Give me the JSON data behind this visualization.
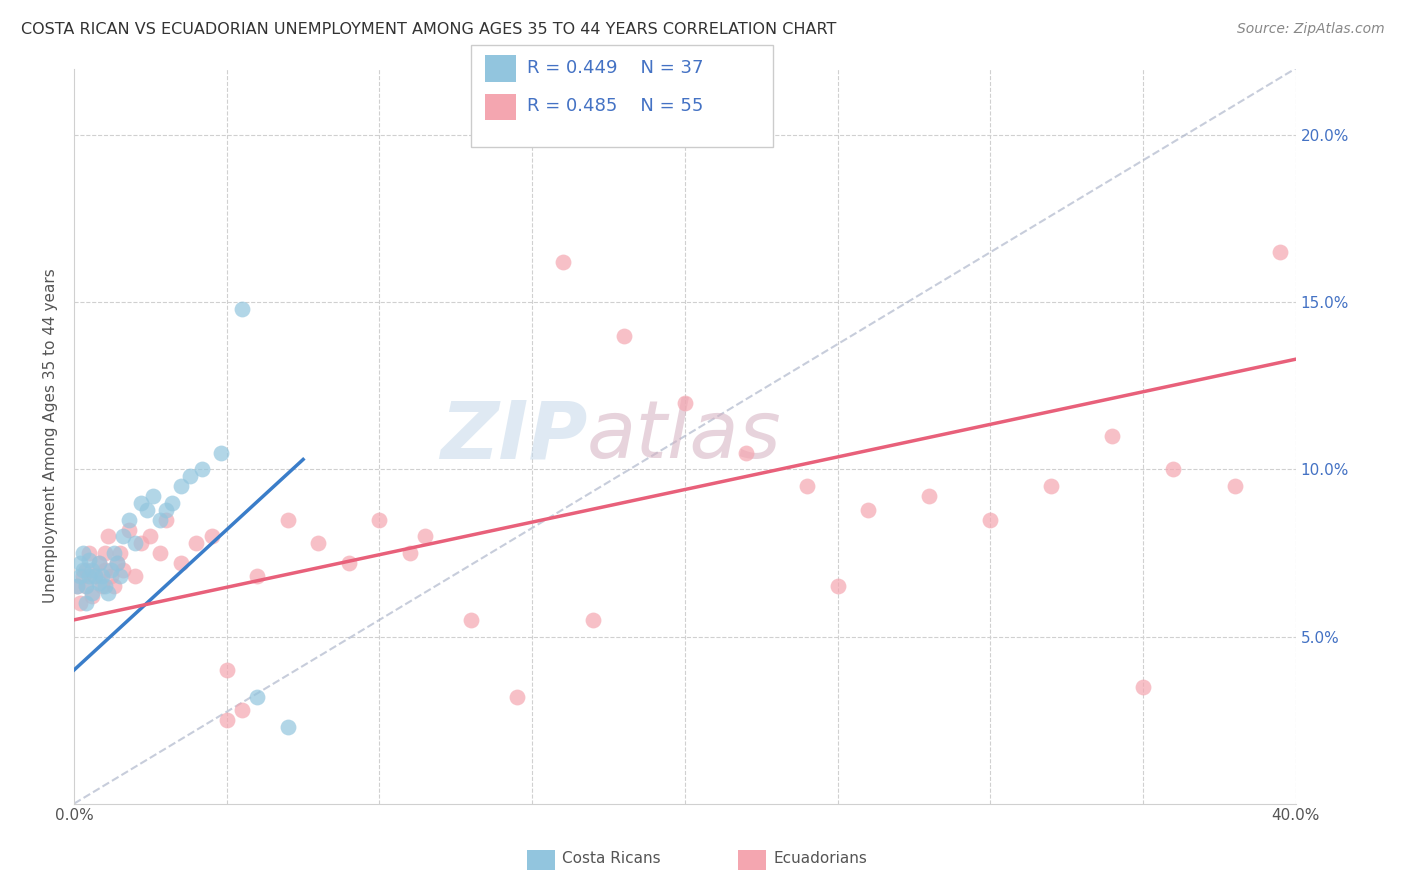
{
  "title": "COSTA RICAN VS ECUADORIAN UNEMPLOYMENT AMONG AGES 35 TO 44 YEARS CORRELATION CHART",
  "source": "Source: ZipAtlas.com",
  "ylabel": "Unemployment Among Ages 35 to 44 years",
  "xmin": 0.0,
  "xmax": 0.4,
  "ymin": 0.0,
  "ymax": 0.22,
  "legend_r_blue": "R = 0.449",
  "legend_n_blue": "N = 37",
  "legend_r_pink": "R = 0.485",
  "legend_n_pink": "N = 55",
  "legend_label_blue": "Costa Ricans",
  "legend_label_pink": "Ecuadorians",
  "blue_color": "#92c5de",
  "pink_color": "#f4a6b0",
  "blue_line_color": "#3a7dc9",
  "pink_line_color": "#e8607a",
  "title_color": "#333333",
  "axis_label_color": "#555555",
  "tick_color_right": "#4472c4",
  "watermark_zip_color": "#c8d8e8",
  "watermark_atlas_color": "#d4b8c8",
  "costa_rican_x": [
    0.001,
    0.002,
    0.002,
    0.003,
    0.003,
    0.004,
    0.004,
    0.005,
    0.005,
    0.006,
    0.006,
    0.007,
    0.008,
    0.008,
    0.009,
    0.01,
    0.011,
    0.012,
    0.013,
    0.014,
    0.015,
    0.016,
    0.018,
    0.02,
    0.022,
    0.024,
    0.026,
    0.028,
    0.03,
    0.032,
    0.035,
    0.038,
    0.042,
    0.048,
    0.055,
    0.06,
    0.07
  ],
  "costa_rican_y": [
    0.065,
    0.068,
    0.072,
    0.07,
    0.075,
    0.06,
    0.065,
    0.068,
    0.073,
    0.07,
    0.063,
    0.068,
    0.066,
    0.072,
    0.068,
    0.065,
    0.063,
    0.07,
    0.075,
    0.072,
    0.068,
    0.08,
    0.085,
    0.078,
    0.09,
    0.088,
    0.092,
    0.085,
    0.088,
    0.09,
    0.095,
    0.098,
    0.1,
    0.105,
    0.148,
    0.032,
    0.023
  ],
  "ecuadorian_x": [
    0.001,
    0.002,
    0.003,
    0.004,
    0.004,
    0.005,
    0.006,
    0.007,
    0.008,
    0.009,
    0.01,
    0.01,
    0.011,
    0.012,
    0.013,
    0.014,
    0.015,
    0.016,
    0.018,
    0.02,
    0.022,
    0.025,
    0.028,
    0.03,
    0.035,
    0.04,
    0.045,
    0.05,
    0.055,
    0.06,
    0.07,
    0.08,
    0.09,
    0.1,
    0.115,
    0.13,
    0.145,
    0.16,
    0.18,
    0.2,
    0.22,
    0.24,
    0.26,
    0.28,
    0.3,
    0.32,
    0.34,
    0.36,
    0.38,
    0.395,
    0.05,
    0.11,
    0.17,
    0.25,
    0.35
  ],
  "ecuadorian_y": [
    0.065,
    0.06,
    0.068,
    0.07,
    0.065,
    0.075,
    0.062,
    0.068,
    0.072,
    0.065,
    0.07,
    0.075,
    0.08,
    0.068,
    0.065,
    0.072,
    0.075,
    0.07,
    0.082,
    0.068,
    0.078,
    0.08,
    0.075,
    0.085,
    0.072,
    0.078,
    0.08,
    0.04,
    0.028,
    0.068,
    0.085,
    0.078,
    0.072,
    0.085,
    0.08,
    0.055,
    0.032,
    0.162,
    0.14,
    0.12,
    0.105,
    0.095,
    0.088,
    0.092,
    0.085,
    0.095,
    0.11,
    0.1,
    0.095,
    0.165,
    0.025,
    0.075,
    0.055,
    0.065,
    0.035
  ],
  "blue_trend_x": [
    0.0,
    0.075
  ],
  "blue_trend_y": [
    0.04,
    0.103
  ],
  "pink_trend_x": [
    0.0,
    0.4
  ],
  "pink_trend_y": [
    0.055,
    0.133
  ],
  "ref_line_x": [
    0.0,
    0.4
  ],
  "ref_line_y": [
    0.0,
    0.22
  ]
}
